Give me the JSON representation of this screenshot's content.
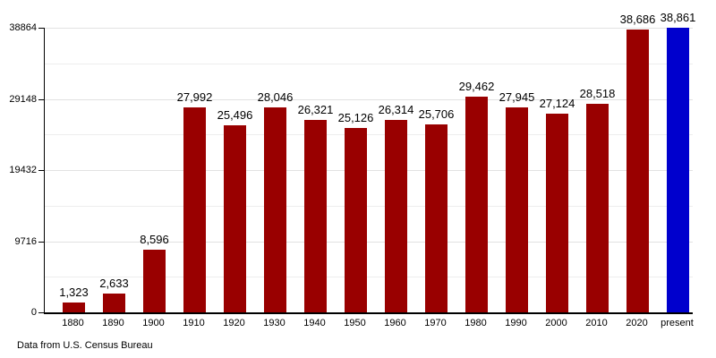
{
  "chart_data": {
    "type": "bar",
    "title": "",
    "xlabel": "",
    "ylabel": "",
    "categories": [
      "1880",
      "1890",
      "1900",
      "1910",
      "1920",
      "1930",
      "1940",
      "1950",
      "1960",
      "1970",
      "1980",
      "1990",
      "2000",
      "2010",
      "2020",
      "present"
    ],
    "values": [
      1323,
      2633,
      8596,
      27992,
      25496,
      28046,
      26321,
      25126,
      26314,
      25706,
      29462,
      27945,
      27124,
      28518,
      38686,
      38861
    ],
    "value_labels": [
      "1,323",
      "2,633",
      "8,596",
      "27,992",
      "25,496",
      "28,046",
      "26,321",
      "25,126",
      "26,314",
      "25,706",
      "29,462",
      "27,945",
      "27,124",
      "28,518",
      "38,686",
      "38,861"
    ],
    "y_axis": {
      "max": 38864,
      "ticks": [
        {
          "value": 0,
          "label": "0"
        },
        {
          "value": 9716,
          "label": "9716"
        },
        {
          "value": 19432,
          "label": "19432"
        },
        {
          "value": 29148,
          "label": "29148"
        },
        {
          "value": 38864,
          "label": "38864"
        }
      ],
      "minor_gridlines": [
        4858,
        14574,
        24290,
        34006
      ]
    },
    "colors": {
      "bar": "#990000",
      "highlight": "#0000CD",
      "axis": "#000000",
      "major_gridline": "#e2e2e2",
      "minor_gridline": "#ededed"
    },
    "highlight_index": 15,
    "grid": true,
    "legend": false
  },
  "footer": {
    "note": "Data from U.S. Census Bureau"
  }
}
